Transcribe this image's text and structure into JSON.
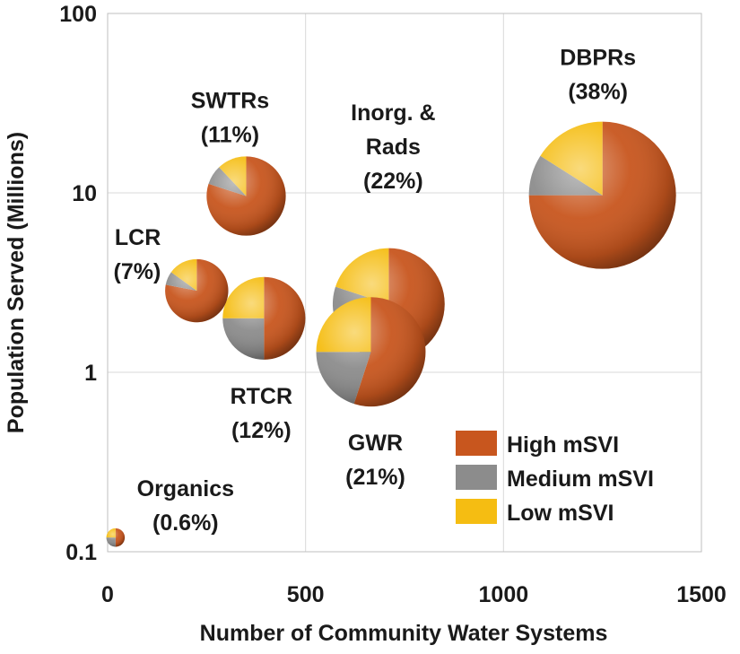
{
  "chart_data": {
    "type": "scatter",
    "subtype": "bubble-pie",
    "title": "",
    "xlabel": "Number of Community Water Systems",
    "ylabel": "Population Served (Millions)",
    "xlim": [
      0,
      1500
    ],
    "ylim": [
      0.1,
      100
    ],
    "yscale": "log",
    "x_ticks": [
      "0",
      "500",
      "1000",
      "1500"
    ],
    "y_ticks": [
      "0.1",
      "1",
      "10",
      "100"
    ],
    "grid": true,
    "legend_position": "bottom-right",
    "legend": [
      {
        "key": "high",
        "label": "High mSVI",
        "color": "#c8561e"
      },
      {
        "key": "medium",
        "label": "Medium mSVI",
        "color": "#8c8c8c"
      },
      {
        "key": "low",
        "label": "Low mSVI",
        "color": "#f5bd12"
      }
    ],
    "series": [
      {
        "name": "DBPRs",
        "label_lines": [
          "DBPRs",
          "(38%)"
        ],
        "percent": 38,
        "x": 1250,
        "y": 9.7,
        "pie": {
          "high": 0.75,
          "medium": 0.09,
          "low": 0.16
        }
      },
      {
        "name": "Inorg. & Rads",
        "label_lines": [
          "Inorg. &",
          "Rads",
          "(22%)"
        ],
        "percent": 22,
        "x": 710,
        "y": 2.4,
        "pie": {
          "high": 0.5,
          "medium": 0.3,
          "low": 0.2
        }
      },
      {
        "name": "GWR",
        "label_lines": [
          "GWR",
          "(21%)"
        ],
        "percent": 21,
        "x": 665,
        "y": 1.3,
        "pie": {
          "high": 0.55,
          "medium": 0.2,
          "low": 0.25
        }
      },
      {
        "name": "RTCR",
        "label_lines": [
          "RTCR",
          "(12%)"
        ],
        "percent": 12,
        "x": 395,
        "y": 2.0,
        "pie": {
          "high": 0.5,
          "medium": 0.25,
          "low": 0.25
        }
      },
      {
        "name": "SWTRs",
        "label_lines": [
          "SWTRs",
          "(11%)"
        ],
        "percent": 11,
        "x": 350,
        "y": 9.6,
        "pie": {
          "high": 0.8,
          "medium": 0.08,
          "low": 0.12
        }
      },
      {
        "name": "LCR",
        "label_lines": [
          "LCR",
          "(7%)"
        ],
        "percent": 7,
        "x": 225,
        "y": 2.85,
        "pie": {
          "high": 0.78,
          "medium": 0.07,
          "low": 0.15
        }
      },
      {
        "name": "Organics",
        "label_lines": [
          "Organics",
          "(0.6%)"
        ],
        "percent": 0.6,
        "x": 20,
        "y": 0.12,
        "pie": {
          "high": 0.5,
          "medium": 0.25,
          "low": 0.25
        }
      }
    ]
  }
}
